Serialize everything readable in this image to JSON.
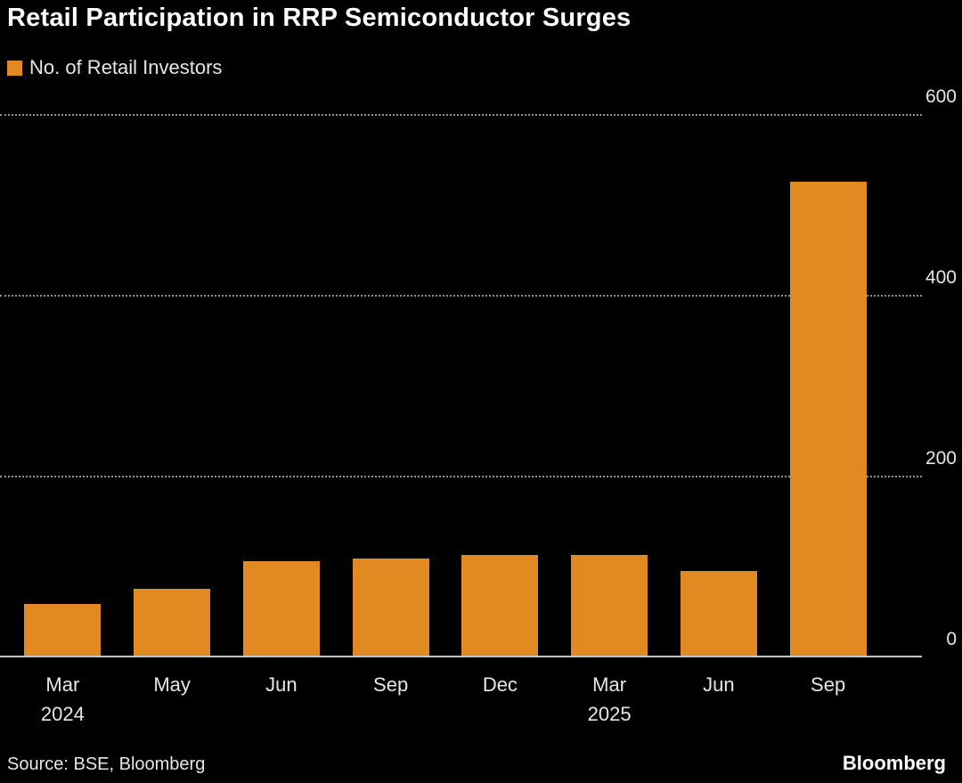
{
  "chart_data": {
    "type": "bar",
    "title": "Retail Participation in RRP Semiconductor Surges",
    "legend": "No. of Retail Investors",
    "categories": [
      {
        "label": "Mar",
        "sublabel": "2024"
      },
      {
        "label": "May",
        "sublabel": ""
      },
      {
        "label": "Jun",
        "sublabel": ""
      },
      {
        "label": "Sep",
        "sublabel": ""
      },
      {
        "label": "Dec",
        "sublabel": ""
      },
      {
        "label": "Mar",
        "sublabel": "2025"
      },
      {
        "label": "Jun",
        "sublabel": ""
      },
      {
        "label": "Sep",
        "sublabel": ""
      }
    ],
    "values": [
      58,
      75,
      105,
      108,
      112,
      112,
      95,
      525
    ],
    "ylabel": "",
    "xlabel": "",
    "ylim": [
      0,
      600
    ],
    "yticks": [
      600,
      400,
      200,
      0
    ],
    "ytick_side": "right",
    "grid": true,
    "gridline_style": "dotted",
    "legend_position": "top-left",
    "bar_color": "#E08A21",
    "background_color": "#000000",
    "text_color": "#e6e6e6"
  },
  "footer": {
    "source": "Source: BSE, Bloomberg",
    "brand": "Bloomberg"
  }
}
